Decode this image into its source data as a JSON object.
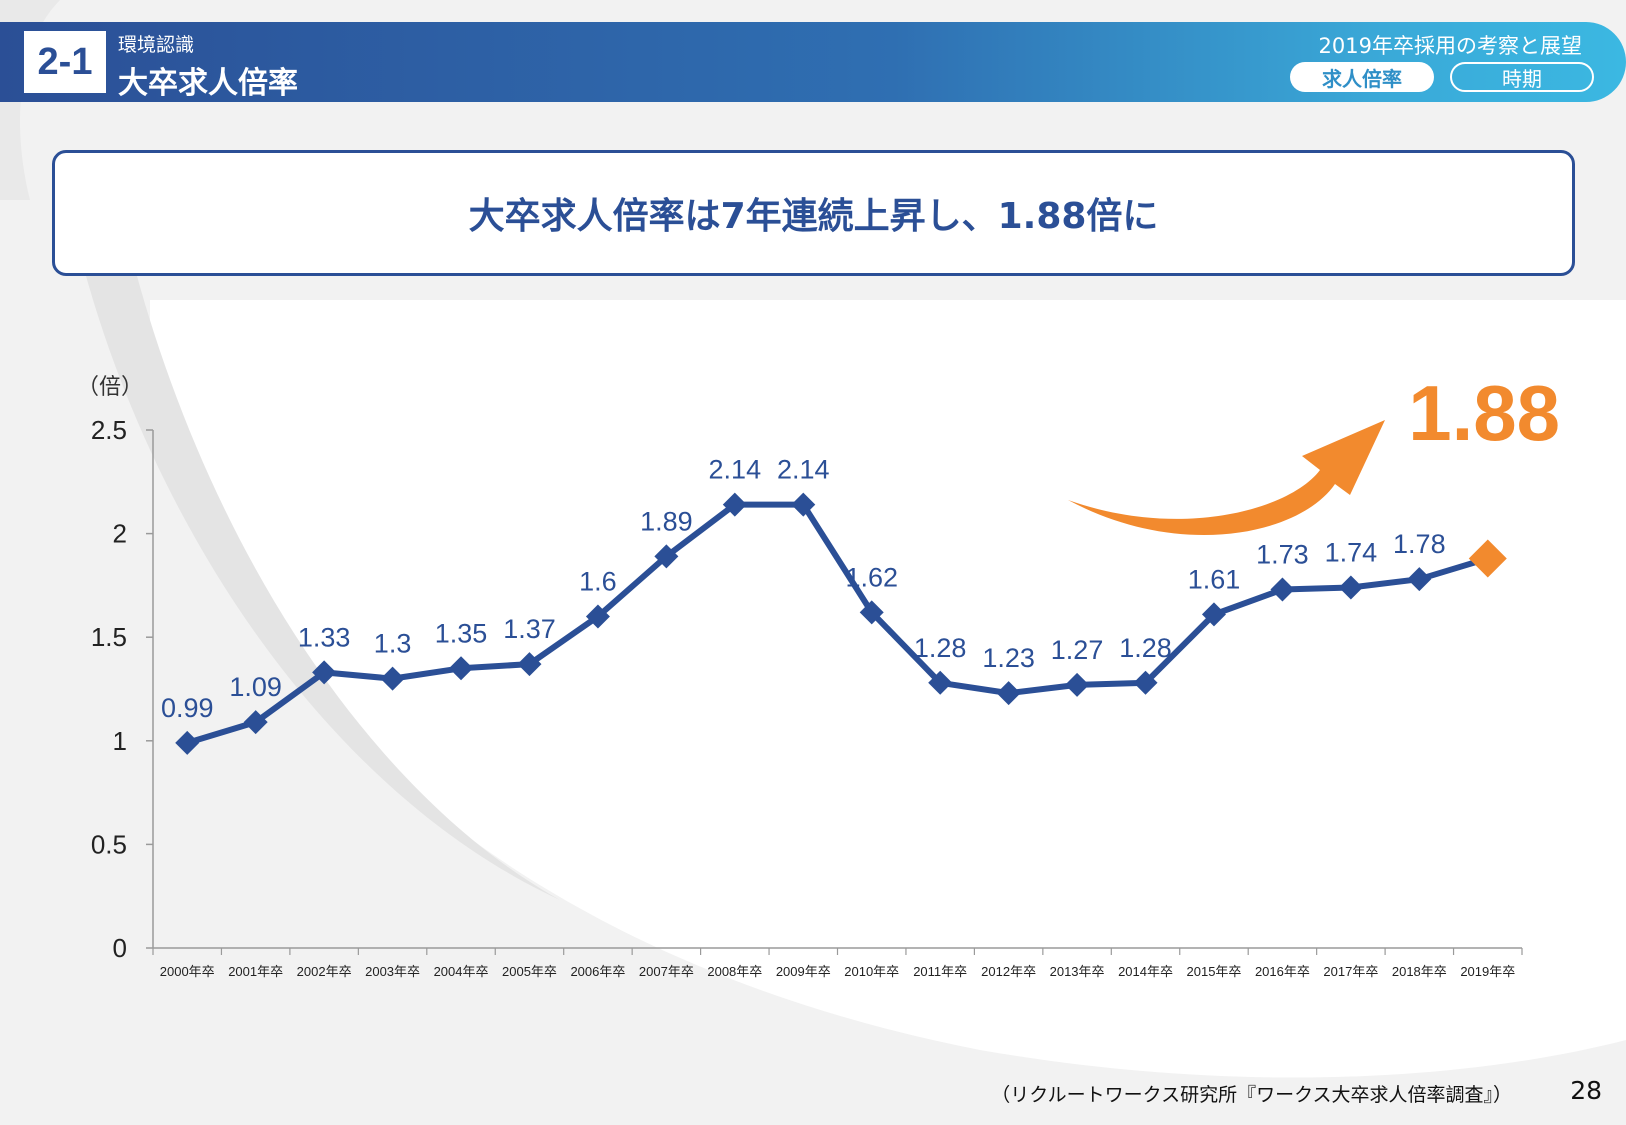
{
  "header": {
    "section_number": "2-1",
    "section_category": "環境認識",
    "section_title": "大卒求人倍率",
    "deck_title": "2019年卒採用の考察と展望",
    "tabs": [
      {
        "label": "求人倍率",
        "active": true
      },
      {
        "label": "時期",
        "active": false
      }
    ]
  },
  "headline": "大卒求人倍率は7年連続上昇し、1.88倍に",
  "chart_data": {
    "type": "line",
    "unit_label": "（倍）",
    "categories": [
      "2000年卒",
      "2001年卒",
      "2002年卒",
      "2003年卒",
      "2004年卒",
      "2005年卒",
      "2006年卒",
      "2007年卒",
      "2008年卒",
      "2009年卒",
      "2010年卒",
      "2011年卒",
      "2012年卒",
      "2013年卒",
      "2014年卒",
      "2015年卒",
      "2016年卒",
      "2017年卒",
      "2018年卒",
      "2019年卒"
    ],
    "values": [
      0.99,
      1.09,
      1.33,
      1.3,
      1.35,
      1.37,
      1.6,
      1.89,
      2.14,
      2.14,
      1.62,
      1.28,
      1.23,
      1.27,
      1.28,
      1.61,
      1.73,
      1.74,
      1.78,
      1.88
    ],
    "data_labels": [
      "0.99",
      "1.09",
      "1.33",
      "1.3",
      "1.35",
      "1.37",
      "1.6",
      "1.89",
      "2.14",
      "2.14",
      "1.62",
      "1.28",
      "1.23",
      "1.27",
      "1.28",
      "1.61",
      "1.73",
      "1.74",
      "1.78",
      ""
    ],
    "ylim": [
      0,
      2.5
    ],
    "yticks": [
      "0",
      "0.5",
      "1",
      "1.5",
      "2",
      "2.5"
    ],
    "grid": false,
    "highlight": {
      "index": 19,
      "label": "1.88",
      "color": "#f28a2e"
    },
    "line_color": "#2b4f96",
    "label_color": "#2b4f96"
  },
  "footer": {
    "source": "（リクルートワークス研究所『ワークス大卒求人倍率調査』）",
    "page_number": "28"
  }
}
